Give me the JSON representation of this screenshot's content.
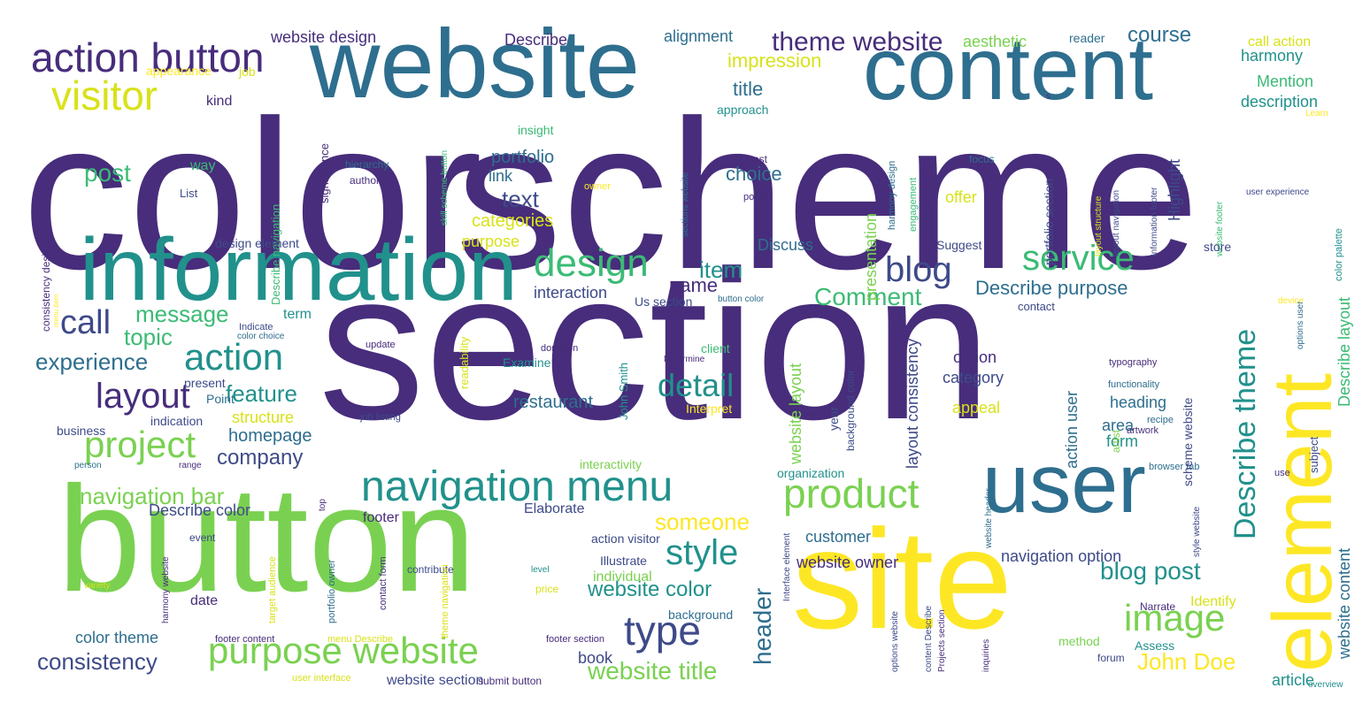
{
  "colors": {
    "purple": "#472d7b",
    "teal": "#2e6e8e",
    "green": "#3bbb75",
    "lime": "#7ad151",
    "yellow": "#d8e219",
    "gold": "#fde725",
    "blue": "#3e4a89",
    "cyan": "#21918c"
  },
  "words": [
    "color",
    "scheme",
    "section",
    "website",
    "content",
    "information",
    "button",
    "site",
    "user",
    "element",
    "action button",
    "visitor",
    "design",
    "blog",
    "service",
    "navigation menu",
    "product",
    "call",
    "action",
    "layout",
    "project",
    "message",
    "topic",
    "experience",
    "detail",
    "Describe theme",
    "image",
    "style",
    "type",
    "purpose website",
    "theme website",
    "course",
    "impression",
    "title",
    "post",
    "text",
    "portfolio",
    "link",
    "choice",
    "categories",
    "purpose",
    "item",
    "name",
    "Comment",
    "Describe purpose",
    "feature",
    "restaurant",
    "homepage",
    "company",
    "navigation bar",
    "someone",
    "website color",
    "consistency",
    "header",
    "blog post",
    "John Doe",
    "website title",
    "Describe color",
    "footer",
    "color theme",
    "website design",
    "Describe",
    "alignment",
    "aesthetic",
    "reader",
    "call action",
    "harmony",
    "Mention",
    "description",
    "appearance",
    "job",
    "kind",
    "approach",
    "Learn",
    "insight",
    "way",
    "cost",
    "focus",
    "List",
    "hierarchy",
    "author",
    "significance",
    "Describe navigation",
    "skill scheme button",
    "sections website",
    "harmony design",
    "engagement",
    "portfolio section",
    "layout structure",
    "layout navigation",
    "Information footer",
    "website footer",
    "user experience",
    "owner",
    "portal",
    "offer",
    "design element",
    "Discuss",
    "Suggest",
    "store",
    "consistency design",
    "menu item",
    "interaction",
    "term",
    "Us section",
    "button color",
    "contact",
    "option",
    "category",
    "appeal",
    "area",
    "form",
    "Highlight",
    "Indicate",
    "color choice",
    "update",
    "donation",
    "Determine",
    "client",
    "Examine",
    "present",
    "Point",
    "readability",
    "John Smith",
    "indication",
    "structure",
    "job listing",
    "Interpret",
    "business",
    "range",
    "person",
    "interactivity",
    "organization",
    "year",
    "background color",
    "layout consistency",
    "action user",
    "heading",
    "typography",
    "functionality",
    "recipe",
    "artwork",
    "artist",
    "browser tab",
    "use",
    "subject",
    "device",
    "color palette",
    "Describe layout",
    "options user",
    "scheme website",
    "style website",
    "website header",
    "Interface element",
    "website layout",
    "presentation",
    "action visitor",
    "Elaborate",
    "event",
    "contribute",
    "level",
    "price",
    "Illustrate",
    "individual",
    "background",
    "customer",
    "website owner",
    "navigation option",
    "Identify",
    "Narrate",
    "method",
    "Assess",
    "forum",
    "article",
    "overview",
    "date",
    "variety",
    "harmony website",
    "top",
    "target audience",
    "portfolio owner",
    "contact form",
    "theme navigation",
    "footer content",
    "menu Describe",
    "footer section",
    "book",
    "website section",
    "submit button",
    "user interface",
    "inquiries",
    "options website",
    "content Describe",
    "Projects section",
    "website content",
    "s"
  ]
}
